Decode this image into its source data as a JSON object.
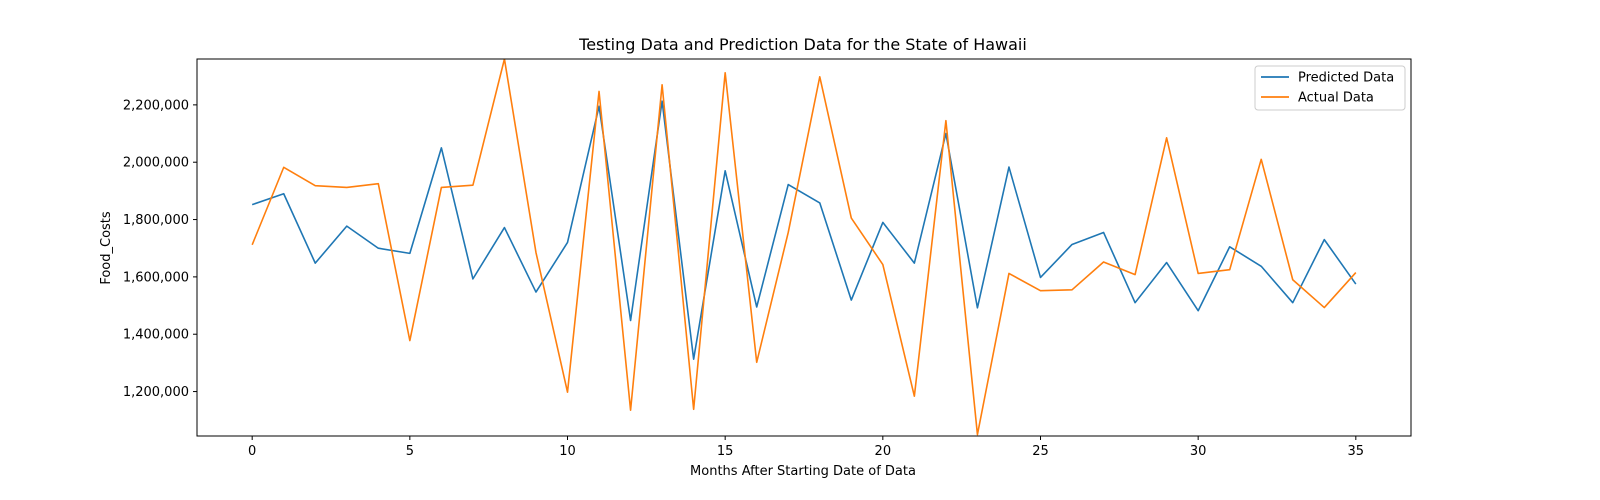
{
  "chart_data": {
    "type": "line",
    "title": "Testing Data and Prediction Data for the State of Hawaii",
    "xlabel": "Months After Starting Date of Data",
    "ylabel": "Food_Costs",
    "xlim": [
      -1.75,
      36.75
    ],
    "ylim": [
      1045000,
      2360000
    ],
    "x_ticks": [
      0,
      5,
      10,
      15,
      20,
      25,
      30,
      35
    ],
    "y_ticks": [
      1200000,
      1400000,
      1600000,
      1800000,
      2000000,
      2200000
    ],
    "y_tick_labels": [
      "1,200,000",
      "1,400,000",
      "1,600,000",
      "1,800,000",
      "2,000,000",
      "2,200,000"
    ],
    "x": [
      0,
      1,
      2,
      3,
      4,
      5,
      6,
      7,
      8,
      9,
      10,
      11,
      12,
      13,
      14,
      15,
      16,
      17,
      18,
      19,
      20,
      21,
      22,
      23,
      24,
      25,
      26,
      27,
      28,
      29,
      30,
      31,
      32,
      33,
      34,
      35
    ],
    "legend_position": "top-right",
    "grid": false,
    "series": [
      {
        "name": "Predicted Data",
        "color": "#1f77b4",
        "values": [
          1852000,
          1890000,
          1648000,
          1777000,
          1700000,
          1682000,
          2050000,
          1593000,
          1772000,
          1547000,
          1720000,
          2195000,
          1448000,
          2213000,
          1313000,
          1970000,
          1495000,
          1922000,
          1858000,
          1519000,
          1790000,
          1648000,
          2100000,
          1492000,
          1983000,
          1598000,
          1713000,
          1755000,
          1510000,
          1650000,
          1482000,
          1705000,
          1637000,
          1510000,
          1730000,
          1575000
        ]
      },
      {
        "name": "Actual Data",
        "color": "#ff7f0e",
        "values": [
          1712000,
          1982000,
          1918000,
          1912000,
          1925000,
          1378000,
          1912000,
          1920000,
          2360000,
          1685000,
          1198000,
          2247000,
          1135000,
          2270000,
          1138000,
          2312000,
          1302000,
          1755000,
          2298000,
          1805000,
          1643000,
          1184000,
          2145000,
          1050000,
          1612000,
          1552000,
          1555000,
          1652000,
          1608000,
          2085000,
          1612000,
          1625000,
          2010000,
          1590000,
          1493000,
          1615000
        ]
      }
    ]
  }
}
